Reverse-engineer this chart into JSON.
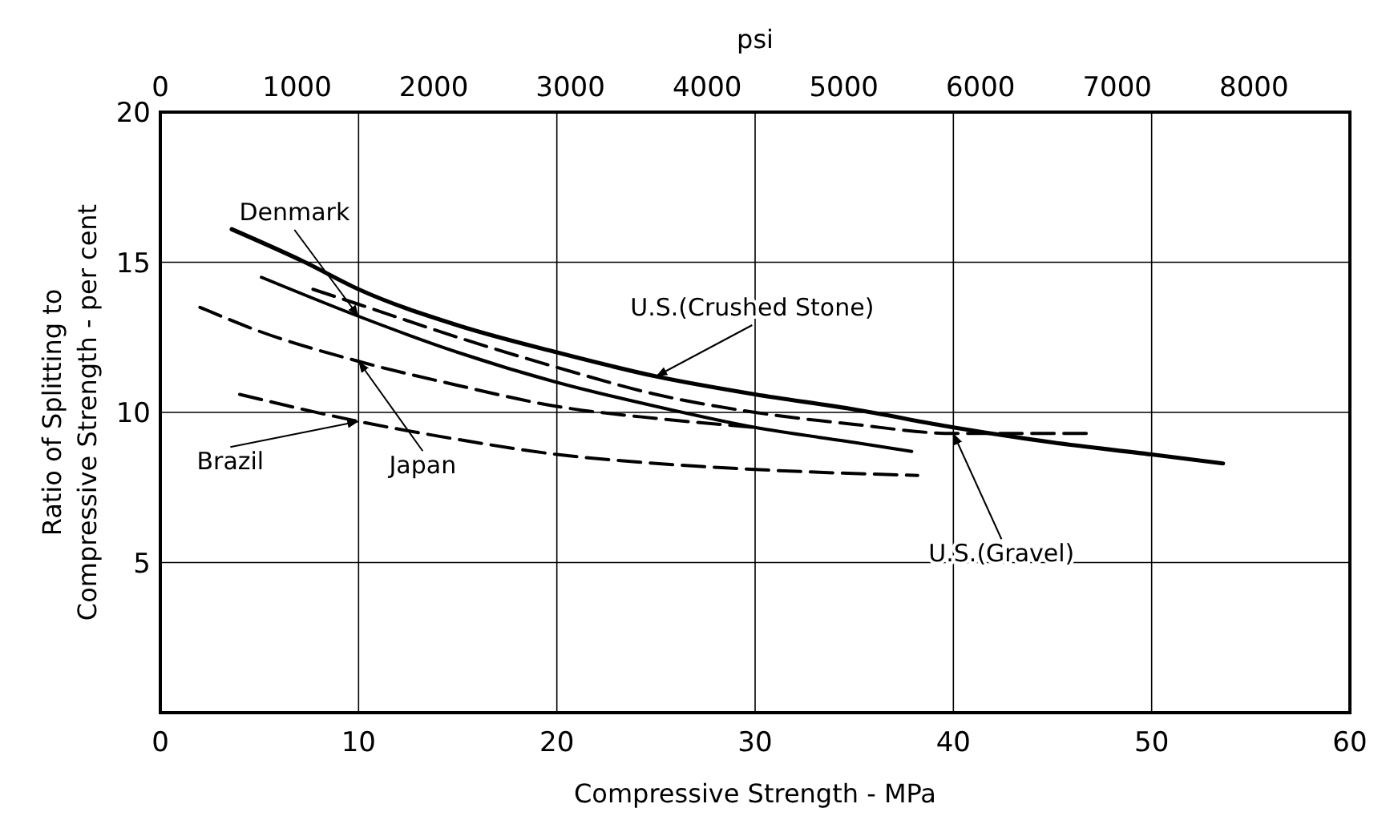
{
  "chart_data": {
    "type": "line",
    "xlabel": "Compressive Strength - MPa",
    "ylabel": "Ratio of Splitting to Compressive Strength - per cent",
    "x2label": "psi",
    "xlim": [
      0,
      60
    ],
    "xticks": [
      0,
      10,
      20,
      30,
      40,
      50,
      60
    ],
    "ylim": [
      0,
      20
    ],
    "yticks": [
      5,
      10,
      15,
      20
    ],
    "x2lim": [
      0,
      8702
    ],
    "x2ticks": [
      0,
      1000,
      2000,
      3000,
      4000,
      5000,
      6000,
      7000,
      8000
    ],
    "grid": true,
    "marker": "none",
    "series": [
      {
        "name": "U.S.(Crushed Stone)",
        "color": "#000000",
        "line_style": "solid",
        "x": [
          3.6,
          7.3,
          10,
          15,
          20,
          25,
          30,
          35,
          40,
          45,
          50,
          53.6
        ],
        "values": [
          16.1,
          15.0,
          14.1,
          12.9,
          12.0,
          11.2,
          10.6,
          10.1,
          9.5,
          9.0,
          8.6,
          8.3
        ]
      },
      {
        "name": "Denmark",
        "color": "#000000",
        "line_style": "solid",
        "x": [
          5.1,
          10,
          15,
          20,
          25,
          30,
          35,
          37.9
        ],
        "values": [
          14.5,
          13.2,
          12.0,
          11.0,
          10.2,
          9.5,
          9.0,
          8.7
        ]
      },
      {
        "name": "U.S.(Gravel)",
        "color": "#000000",
        "line_style": "dashed",
        "x": [
          7.7,
          10,
          15,
          20,
          25,
          30,
          35,
          40,
          46.8
        ],
        "values": [
          14.1,
          13.6,
          12.5,
          11.5,
          10.6,
          10.0,
          9.6,
          9.3,
          9.3
        ]
      },
      {
        "name": "Japan",
        "color": "#000000",
        "line_style": "dashed",
        "x": [
          2,
          5,
          10,
          15,
          20,
          25,
          30
        ],
        "values": [
          13.5,
          12.7,
          11.7,
          10.9,
          10.2,
          9.8,
          9.5
        ]
      },
      {
        "name": "Brazil",
        "color": "#000000",
        "line_style": "dashed",
        "x": [
          4,
          10,
          15,
          20,
          25,
          30,
          38.2
        ],
        "values": [
          10.6,
          9.7,
          9.1,
          8.6,
          8.3,
          8.1,
          7.9
        ]
      }
    ]
  }
}
